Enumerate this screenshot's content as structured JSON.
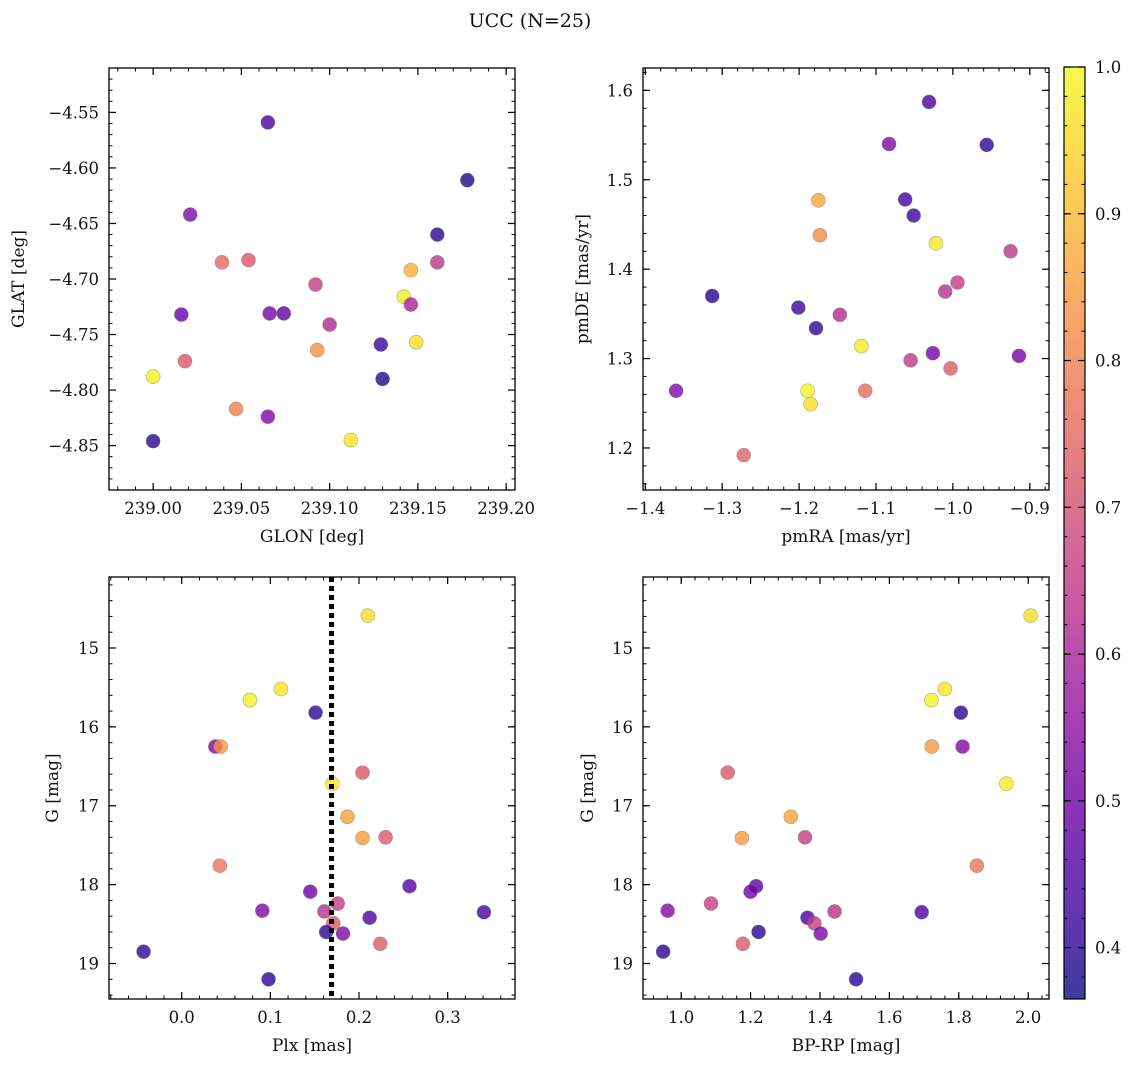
{
  "figure_title": "UCC (N=25)",
  "colormap": {
    "name": "plasma",
    "range": [
      0.365,
      1.0
    ],
    "ticks": [
      0.4,
      0.5,
      0.6,
      0.7,
      0.8,
      0.9,
      1.0
    ],
    "tick_labels": [
      "0.4",
      "0.5",
      "0.6",
      "0.7",
      "0.8",
      "0.9",
      "1.0"
    ],
    "stops": [
      "#0d0887",
      "#46039f",
      "#7201a8",
      "#9c179e",
      "#bd3786",
      "#d8576b",
      "#ed7953",
      "#fb9f3a",
      "#fdca26",
      "#f0f921"
    ],
    "point_alpha": 0.8
  },
  "chart_data": [
    {
      "type": "scatter",
      "id": "sky",
      "xlabel": "GLON [deg]",
      "ylabel": "GLAT [deg]",
      "xlim": [
        238.975,
        239.205
      ],
      "ylim": [
        -4.89,
        -4.51
      ],
      "xticks": [
        239.0,
        239.05,
        239.1,
        239.15,
        239.2
      ],
      "xtick_labels": [
        "239.00",
        "239.05",
        "239.10",
        "239.15",
        "239.20"
      ],
      "yticks": [
        -4.55,
        -4.6,
        -4.65,
        -4.7,
        -4.75,
        -4.8,
        -4.85
      ],
      "ytick_labels": [
        "−4.55",
        "−4.60",
        "−4.65",
        "−4.70",
        "−4.75",
        "−4.80",
        "−4.85"
      ],
      "y_inverted": false,
      "points": [
        {
          "x": 239.065,
          "y": -4.559,
          "c": 0.44
        },
        {
          "x": 239.178,
          "y": -4.611,
          "c": 0.39
        },
        {
          "x": 239.021,
          "y": -4.642,
          "c": 0.53
        },
        {
          "x": 239.161,
          "y": -4.66,
          "c": 0.4
        },
        {
          "x": 239.039,
          "y": -4.685,
          "c": 0.75
        },
        {
          "x": 239.054,
          "y": -4.683,
          "c": 0.72
        },
        {
          "x": 239.161,
          "y": -4.685,
          "c": 0.64
        },
        {
          "x": 239.146,
          "y": -4.692,
          "c": 0.88
        },
        {
          "x": 239.092,
          "y": -4.705,
          "c": 0.66
        },
        {
          "x": 239.142,
          "y": -4.716,
          "c": 0.98
        },
        {
          "x": 239.146,
          "y": -4.723,
          "c": 0.6
        },
        {
          "x": 239.016,
          "y": -4.732,
          "c": 0.49
        },
        {
          "x": 239.066,
          "y": -4.731,
          "c": 0.51
        },
        {
          "x": 239.074,
          "y": -4.731,
          "c": 0.47
        },
        {
          "x": 239.1,
          "y": -4.741,
          "c": 0.62
        },
        {
          "x": 239.149,
          "y": -4.757,
          "c": 0.96
        },
        {
          "x": 239.129,
          "y": -4.759,
          "c": 0.42
        },
        {
          "x": 239.093,
          "y": -4.764,
          "c": 0.83
        },
        {
          "x": 239.018,
          "y": -4.774,
          "c": 0.72
        },
        {
          "x": 239.0,
          "y": -4.788,
          "c": 0.99
        },
        {
          "x": 239.13,
          "y": -4.79,
          "c": 0.39
        },
        {
          "x": 239.047,
          "y": -4.817,
          "c": 0.8
        },
        {
          "x": 239.065,
          "y": -4.824,
          "c": 0.53
        },
        {
          "x": 239.0,
          "y": -4.846,
          "c": 0.4
        },
        {
          "x": 239.112,
          "y": -4.845,
          "c": 0.97
        }
      ]
    },
    {
      "type": "scatter",
      "id": "pm",
      "xlabel": "pmRA [mas/yr]",
      "ylabel": "pmDE [mas/yr]",
      "xlim": [
        -1.403,
        -0.875
      ],
      "ylim": [
        1.153,
        1.625
      ],
      "xticks": [
        -1.4,
        -1.3,
        -1.2,
        -1.1,
        -1.0,
        -0.9
      ],
      "xtick_labels": [
        "−1.4",
        "−1.3",
        "−1.2",
        "−1.1",
        "−1.0",
        "−0.9"
      ],
      "yticks": [
        1.2,
        1.3,
        1.4,
        1.5,
        1.6
      ],
      "ytick_labels": [
        "1.2",
        "1.3",
        "1.4",
        "1.5",
        "1.6"
      ],
      "y_inverted": false,
      "points": [
        {
          "x": -1.031,
          "y": 1.587,
          "c": 0.44
        },
        {
          "x": -1.083,
          "y": 1.54,
          "c": 0.53
        },
        {
          "x": -0.956,
          "y": 1.539,
          "c": 0.4
        },
        {
          "x": -1.175,
          "y": 1.477,
          "c": 0.87
        },
        {
          "x": -1.062,
          "y": 1.478,
          "c": 0.43
        },
        {
          "x": -1.051,
          "y": 1.46,
          "c": 0.42
        },
        {
          "x": -1.173,
          "y": 1.438,
          "c": 0.82
        },
        {
          "x": -1.022,
          "y": 1.429,
          "c": 0.97
        },
        {
          "x": -0.925,
          "y": 1.42,
          "c": 0.64
        },
        {
          "x": -0.994,
          "y": 1.385,
          "c": 0.66
        },
        {
          "x": -1.01,
          "y": 1.375,
          "c": 0.63
        },
        {
          "x": -1.313,
          "y": 1.37,
          "c": 0.39
        },
        {
          "x": -1.201,
          "y": 1.357,
          "c": 0.42
        },
        {
          "x": -1.147,
          "y": 1.349,
          "c": 0.62
        },
        {
          "x": -1.178,
          "y": 1.334,
          "c": 0.41
        },
        {
          "x": -1.119,
          "y": 1.314,
          "c": 0.98
        },
        {
          "x": -1.026,
          "y": 1.306,
          "c": 0.51
        },
        {
          "x": -0.914,
          "y": 1.303,
          "c": 0.51
        },
        {
          "x": -1.055,
          "y": 1.298,
          "c": 0.65
        },
        {
          "x": -1.003,
          "y": 1.289,
          "c": 0.73
        },
        {
          "x": -1.36,
          "y": 1.264,
          "c": 0.53
        },
        {
          "x": -1.189,
          "y": 1.264,
          "c": 0.99
        },
        {
          "x": -1.114,
          "y": 1.264,
          "c": 0.76
        },
        {
          "x": -1.185,
          "y": 1.249,
          "c": 0.96
        },
        {
          "x": -1.272,
          "y": 1.192,
          "c": 0.74
        }
      ]
    },
    {
      "type": "scatter",
      "id": "plx",
      "xlabel": "Plx [mas]",
      "ylabel": "G [mag]",
      "xlim": [
        -0.082,
        0.376
      ],
      "ylim": [
        19.45,
        14.1
      ],
      "xticks": [
        0.0,
        0.1,
        0.2,
        0.3
      ],
      "xtick_labels": [
        "0.0",
        "0.1",
        "0.2",
        "0.3"
      ],
      "yticks": [
        15,
        16,
        17,
        18,
        19
      ],
      "ytick_labels": [
        "15",
        "16",
        "17",
        "18",
        "19"
      ],
      "y_inverted": true,
      "vline": {
        "x": 0.169,
        "style": "dotted",
        "color": "#000000"
      },
      "points": [
        {
          "x": 0.21,
          "y": 14.59,
          "c": 0.96
        },
        {
          "x": 0.112,
          "y": 15.52,
          "c": 0.97
        },
        {
          "x": 0.077,
          "y": 15.66,
          "c": 0.99
        },
        {
          "x": 0.151,
          "y": 15.82,
          "c": 0.4
        },
        {
          "x": 0.038,
          "y": 16.25,
          "c": 0.53
        },
        {
          "x": 0.044,
          "y": 16.25,
          "c": 0.84
        },
        {
          "x": 0.204,
          "y": 16.58,
          "c": 0.72
        },
        {
          "x": 0.17,
          "y": 16.72,
          "c": 0.98
        },
        {
          "x": 0.187,
          "y": 17.14,
          "c": 0.86
        },
        {
          "x": 0.204,
          "y": 17.41,
          "c": 0.85
        },
        {
          "x": 0.23,
          "y": 17.4,
          "c": 0.72
        },
        {
          "x": 0.043,
          "y": 17.76,
          "c": 0.78
        },
        {
          "x": 0.257,
          "y": 18.02,
          "c": 0.46
        },
        {
          "x": 0.145,
          "y": 18.09,
          "c": 0.5
        },
        {
          "x": 0.176,
          "y": 18.24,
          "c": 0.66
        },
        {
          "x": 0.091,
          "y": 18.33,
          "c": 0.53
        },
        {
          "x": 0.161,
          "y": 18.34,
          "c": 0.63
        },
        {
          "x": 0.341,
          "y": 18.35,
          "c": 0.44
        },
        {
          "x": 0.212,
          "y": 18.42,
          "c": 0.44
        },
        {
          "x": 0.171,
          "y": 18.49,
          "c": 0.72
        },
        {
          "x": 0.163,
          "y": 18.6,
          "c": 0.4
        },
        {
          "x": 0.182,
          "y": 18.62,
          "c": 0.52
        },
        {
          "x": 0.224,
          "y": 18.75,
          "c": 0.73
        },
        {
          "x": -0.043,
          "y": 18.85,
          "c": 0.4
        },
        {
          "x": 0.098,
          "y": 19.2,
          "c": 0.4
        }
      ]
    },
    {
      "type": "scatter",
      "id": "cmd",
      "xlabel": "BP-RP [mag]",
      "ylabel": "G [mag]",
      "xlim": [
        0.89,
        2.06
      ],
      "ylim": [
        19.45,
        14.1
      ],
      "xticks": [
        1.0,
        1.2,
        1.4,
        1.6,
        1.8,
        2.0
      ],
      "xtick_labels": [
        "1.0",
        "1.2",
        "1.4",
        "1.6",
        "1.8",
        "2.0"
      ],
      "yticks": [
        15,
        16,
        17,
        18,
        19
      ],
      "ytick_labels": [
        "15",
        "16",
        "17",
        "18",
        "19"
      ],
      "y_inverted": true,
      "points": [
        {
          "x": 2.007,
          "y": 14.59,
          "c": 0.96
        },
        {
          "x": 1.76,
          "y": 15.52,
          "c": 0.97
        },
        {
          "x": 1.721,
          "y": 15.66,
          "c": 0.99
        },
        {
          "x": 1.806,
          "y": 15.82,
          "c": 0.4
        },
        {
          "x": 1.722,
          "y": 16.25,
          "c": 0.84
        },
        {
          "x": 1.811,
          "y": 16.25,
          "c": 0.53
        },
        {
          "x": 1.134,
          "y": 16.58,
          "c": 0.72
        },
        {
          "x": 1.937,
          "y": 16.72,
          "c": 0.98
        },
        {
          "x": 1.316,
          "y": 17.14,
          "c": 0.86
        },
        {
          "x": 1.175,
          "y": 17.41,
          "c": 0.85
        },
        {
          "x": 1.357,
          "y": 17.4,
          "c": 0.66
        },
        {
          "x": 1.852,
          "y": 17.76,
          "c": 0.78
        },
        {
          "x": 1.216,
          "y": 18.02,
          "c": 0.46
        },
        {
          "x": 1.2,
          "y": 18.09,
          "c": 0.5
        },
        {
          "x": 1.086,
          "y": 18.24,
          "c": 0.66
        },
        {
          "x": 0.961,
          "y": 18.33,
          "c": 0.53
        },
        {
          "x": 1.442,
          "y": 18.34,
          "c": 0.63
        },
        {
          "x": 1.693,
          "y": 18.35,
          "c": 0.44
        },
        {
          "x": 1.364,
          "y": 18.42,
          "c": 0.44
        },
        {
          "x": 1.384,
          "y": 18.49,
          "c": 0.66
        },
        {
          "x": 1.223,
          "y": 18.6,
          "c": 0.4
        },
        {
          "x": 1.402,
          "y": 18.62,
          "c": 0.52
        },
        {
          "x": 1.178,
          "y": 18.75,
          "c": 0.72
        },
        {
          "x": 0.948,
          "y": 18.85,
          "c": 0.4
        },
        {
          "x": 1.504,
          "y": 19.2,
          "c": 0.4
        }
      ]
    }
  ]
}
